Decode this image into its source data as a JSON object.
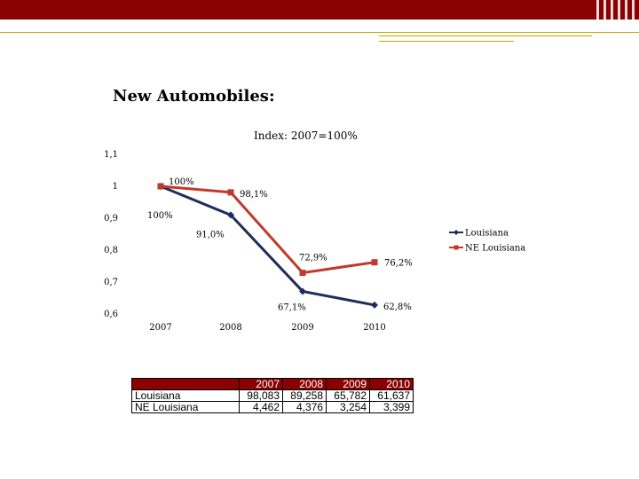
{
  "slide": {
    "title": "New Automobiles:",
    "accent_color": "#8b0000"
  },
  "chart_data": {
    "type": "line",
    "subtitle": "Index: 2007=100%",
    "categories": [
      "2007",
      "2008",
      "2009",
      "2010"
    ],
    "y_ticks": [
      "1,1",
      "1",
      "0,9",
      "0,8",
      "0,7",
      "0,6"
    ],
    "ylim": [
      0.6,
      1.1
    ],
    "grid": false,
    "legend_position": "right",
    "series": [
      {
        "name": "Louisiana",
        "color": "#1f2d5c",
        "marker": "diamond",
        "values": [
          1.0,
          0.91,
          0.671,
          0.628
        ],
        "labels": [
          "100%",
          "91,0%",
          "67,1%",
          "62,8%"
        ]
      },
      {
        "name": "NE Louisiana",
        "color": "#c0392b",
        "marker": "square",
        "values": [
          1.0,
          0.981,
          0.729,
          0.762
        ],
        "labels": [
          "100%",
          "98,1%",
          "72,9%",
          "76,2%"
        ]
      }
    ]
  },
  "table": {
    "columns": [
      "2007",
      "2008",
      "2009",
      "2010"
    ],
    "rows": [
      {
        "name": "Louisiana",
        "values": [
          "98,083",
          "89,258",
          "65,782",
          "61,637"
        ]
      },
      {
        "name": "NE Louisiana",
        "values": [
          "4,462",
          "4,376",
          "3,254",
          "3,399"
        ]
      }
    ]
  }
}
